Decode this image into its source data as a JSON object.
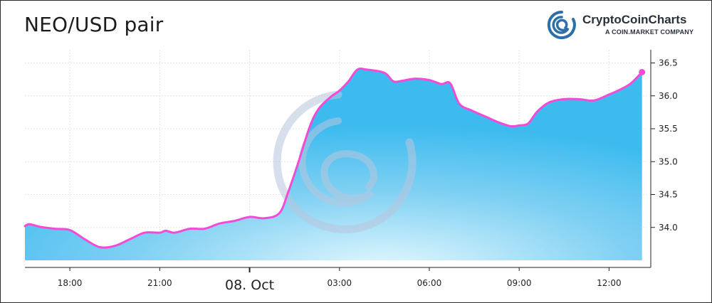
{
  "header": {
    "title": "NEO/USD pair",
    "brand_name": "CryptoCoinCharts",
    "brand_sub": "A COIN.MARKET COMPANY"
  },
  "colors": {
    "line": "#f24bd6",
    "area_top": "#3dbbef",
    "area_bottom": "#d8f4fd",
    "brand": "#2e6fa8",
    "watermark": "#b9c6dd"
  },
  "icons": {
    "brand_logo": "cryptocoincharts-logo-icon",
    "watermark": "cryptocoincharts-watermark-icon"
  },
  "chart_data": {
    "type": "area",
    "title": "NEO/USD pair",
    "xlabel": "",
    "ylabel": "",
    "y_axis_position": "right",
    "ylim": [
      33.5,
      36.7
    ],
    "yticks": [
      34.0,
      34.5,
      35.0,
      35.5,
      36.0,
      36.5
    ],
    "ytick_labels": [
      "34.0",
      "34.5",
      "35.0",
      "35.5",
      "36.0",
      "36.5"
    ],
    "xlim": [
      16.5,
      37.25
    ],
    "xticks": [
      {
        "x": 18,
        "label": "18:00",
        "major": false
      },
      {
        "x": 21,
        "label": "21:00",
        "major": false
      },
      {
        "x": 24,
        "label": "08. Oct",
        "major": true
      },
      {
        "x": 27,
        "label": "03:00",
        "major": false
      },
      {
        "x": 30,
        "label": "06:00",
        "major": false
      },
      {
        "x": 33,
        "label": "09:00",
        "major": false
      },
      {
        "x": 36,
        "label": "12:00",
        "major": false
      }
    ],
    "grid": true,
    "series": [
      {
        "x": [
          16.5,
          16.65,
          17.0,
          17.5,
          18.0,
          18.5,
          19.0,
          19.5,
          20.0,
          20.5,
          21.0,
          21.2,
          21.5,
          22.0,
          22.5,
          23.0,
          23.5,
          24.0,
          24.5,
          25.0,
          25.3,
          25.6,
          26.0,
          26.3,
          26.7,
          27.0,
          27.3,
          27.6,
          27.9,
          28.5,
          28.8,
          29.1,
          29.5,
          30.0,
          30.4,
          30.7,
          31.0,
          31.4,
          31.8,
          32.3,
          32.7,
          33.0,
          33.3,
          33.6,
          34.0,
          34.5,
          35.0,
          35.5,
          36.0,
          36.3,
          36.7,
          37.1
        ],
        "values": [
          34.02,
          34.05,
          34.01,
          33.98,
          33.96,
          33.82,
          33.7,
          33.72,
          33.82,
          33.92,
          33.92,
          33.95,
          33.92,
          33.98,
          33.98,
          34.06,
          34.1,
          34.16,
          34.14,
          34.22,
          34.55,
          34.95,
          35.52,
          35.8,
          35.98,
          36.08,
          36.22,
          36.4,
          36.4,
          36.35,
          36.22,
          36.23,
          36.26,
          36.24,
          36.18,
          36.19,
          35.88,
          35.78,
          35.7,
          35.6,
          35.54,
          35.55,
          35.58,
          35.76,
          35.9,
          35.95,
          35.95,
          35.93,
          36.02,
          36.08,
          36.18,
          36.36
        ]
      }
    ]
  }
}
